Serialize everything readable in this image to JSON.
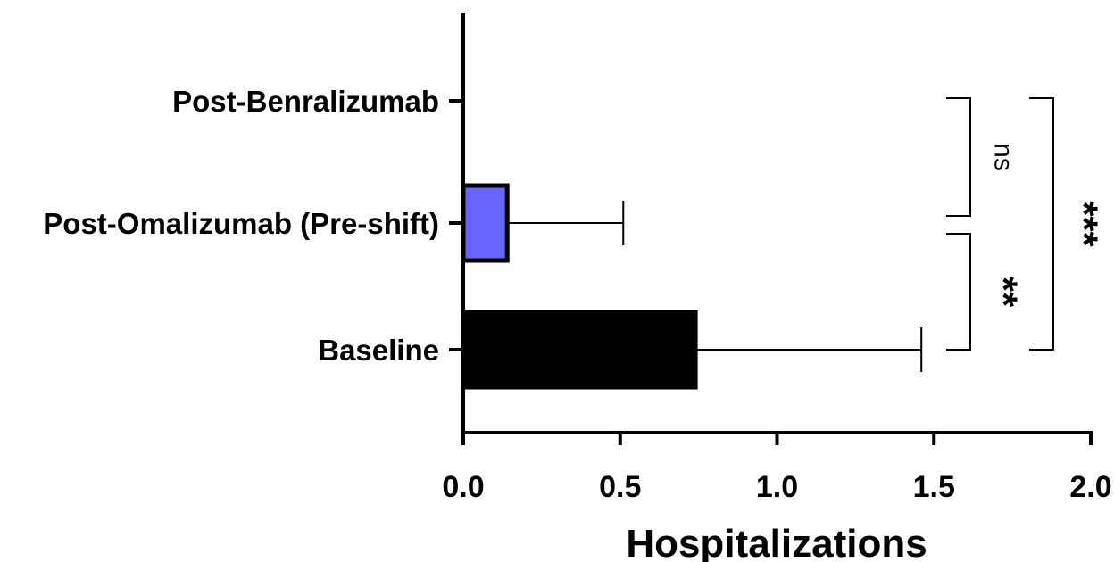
{
  "chart_data": {
    "type": "bar",
    "orientation": "horizontal",
    "categories": [
      "Post-Benralizumab",
      "Post-Omalizumab (Pre-shift)",
      "Baseline"
    ],
    "values": [
      0,
      0.14,
      0.74
    ],
    "errors": [
      0,
      0.37,
      0.72
    ],
    "colors": [
      "#ffffff",
      "#6666ff",
      "#000000"
    ],
    "xlabel": "Hospitalizations",
    "ylabel": "",
    "xlim": [
      0,
      2.0
    ],
    "xticks": [
      "0.0",
      "0.5",
      "1.0",
      "1.5",
      "2.0"
    ],
    "grid": false,
    "significance": [
      {
        "from": "Post-Benralizumab",
        "to": "Post-Omalizumab (Pre-shift)",
        "label": "ns"
      },
      {
        "from": "Post-Omalizumab (Pre-shift)",
        "to": "Baseline",
        "label": "**"
      },
      {
        "from": "Post-Benralizumab",
        "to": "Baseline",
        "label": "***"
      }
    ]
  }
}
